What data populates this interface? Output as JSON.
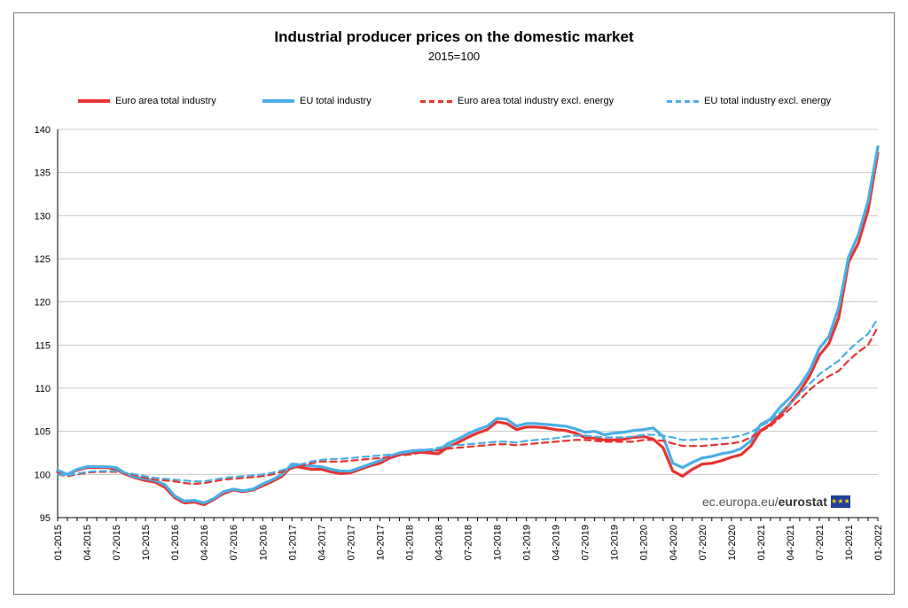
{
  "chart_data": {
    "type": "line",
    "title": "Industrial producer prices on the domestic market",
    "subtitle": "2015=100",
    "ylim": [
      95,
      140
    ],
    "yticks": [
      95,
      100,
      105,
      110,
      115,
      120,
      125,
      130,
      135,
      140
    ],
    "grid": true,
    "legend_position": "top",
    "x_tick_labels": [
      "01-2015",
      "04-2015",
      "07-2015",
      "10-2015",
      "01-2016",
      "04-2016",
      "07-2016",
      "10-2016",
      "01-2017",
      "04-2017",
      "07-2017",
      "10-2017",
      "01-2018",
      "04-2018",
      "07-2018",
      "10-2018",
      "01-2019",
      "04-2019",
      "07-2019",
      "10-2019",
      "01-2020",
      "04-2020",
      "07-2020",
      "10-2020",
      "01-2021",
      "04-2021",
      "07-2021",
      "10-2021",
      "01-2022"
    ],
    "x": [
      "01-2015",
      "02-2015",
      "03-2015",
      "04-2015",
      "05-2015",
      "06-2015",
      "07-2015",
      "08-2015",
      "09-2015",
      "10-2015",
      "11-2015",
      "12-2015",
      "01-2016",
      "02-2016",
      "03-2016",
      "04-2016",
      "05-2016",
      "06-2016",
      "07-2016",
      "08-2016",
      "09-2016",
      "10-2016",
      "11-2016",
      "12-2016",
      "01-2017",
      "02-2017",
      "03-2017",
      "04-2017",
      "05-2017",
      "06-2017",
      "07-2017",
      "08-2017",
      "09-2017",
      "10-2017",
      "11-2017",
      "12-2017",
      "01-2018",
      "02-2018",
      "03-2018",
      "04-2018",
      "05-2018",
      "06-2018",
      "07-2018",
      "08-2018",
      "09-2018",
      "10-2018",
      "11-2018",
      "12-2018",
      "01-2019",
      "02-2019",
      "03-2019",
      "04-2019",
      "05-2019",
      "06-2019",
      "07-2019",
      "08-2019",
      "09-2019",
      "10-2019",
      "11-2019",
      "12-2019",
      "01-2020",
      "02-2020",
      "03-2020",
      "04-2020",
      "05-2020",
      "06-2020",
      "07-2020",
      "08-2020",
      "09-2020",
      "10-2020",
      "11-2020",
      "12-2020",
      "01-2021",
      "02-2021",
      "03-2021",
      "04-2021",
      "05-2021",
      "06-2021",
      "07-2021",
      "08-2021",
      "09-2021",
      "10-2021",
      "11-2021",
      "12-2021",
      "01-2022"
    ],
    "series": [
      {
        "name": "Euro area total industry",
        "color": "#e8332f",
        "dash": false,
        "values": [
          100.3,
          100.0,
          100.5,
          100.8,
          100.8,
          100.8,
          100.6,
          100.0,
          99.6,
          99.3,
          99.1,
          98.5,
          97.3,
          96.7,
          96.8,
          96.5,
          97.1,
          97.8,
          98.2,
          98.0,
          98.2,
          98.7,
          99.2,
          99.8,
          101.0,
          100.8,
          100.6,
          100.6,
          100.3,
          100.1,
          100.2,
          100.6,
          101.0,
          101.3,
          101.9,
          102.3,
          102.5,
          102.6,
          102.5,
          102.4,
          103.2,
          103.7,
          104.3,
          104.8,
          105.2,
          106.1,
          105.9,
          105.2,
          105.5,
          105.5,
          105.4,
          105.2,
          105.1,
          104.8,
          104.3,
          104.2,
          104.0,
          104.0,
          104.1,
          104.3,
          104.4,
          104.1,
          103.1,
          100.4,
          99.8,
          100.6,
          101.2,
          101.3,
          101.6,
          102.0,
          102.3,
          103.3,
          105.1,
          105.8,
          106.9,
          108.2,
          109.6,
          111.4,
          113.8,
          115.2,
          118.2,
          124.6,
          126.8,
          130.6,
          137.3
        ]
      },
      {
        "name": "EU total industry",
        "color": "#4aaee6",
        "dash": false,
        "values": [
          100.5,
          100.0,
          100.6,
          100.9,
          100.9,
          100.9,
          100.8,
          100.1,
          99.7,
          99.5,
          99.3,
          98.8,
          97.5,
          96.9,
          97.0,
          96.7,
          97.2,
          98.0,
          98.3,
          98.1,
          98.3,
          98.9,
          99.4,
          100.0,
          101.2,
          101.1,
          101.0,
          100.9,
          100.6,
          100.4,
          100.4,
          100.8,
          101.2,
          101.6,
          102.1,
          102.5,
          102.7,
          102.8,
          102.8,
          102.8,
          103.6,
          104.1,
          104.7,
          105.2,
          105.6,
          106.5,
          106.4,
          105.6,
          105.9,
          105.9,
          105.8,
          105.7,
          105.6,
          105.3,
          104.9,
          105.0,
          104.6,
          104.8,
          104.9,
          105.1,
          105.2,
          105.4,
          104.4,
          101.3,
          100.8,
          101.4,
          101.9,
          102.1,
          102.4,
          102.6,
          103.0,
          103.9,
          105.8,
          106.4,
          107.8,
          108.9,
          110.3,
          112.0,
          114.6,
          116.0,
          119.4,
          125.2,
          127.8,
          131.7,
          138.0
        ]
      },
      {
        "name": "Euro area total industry excl. energy",
        "color": "#e8332f",
        "dash": true,
        "values": [
          100.0,
          99.8,
          100.0,
          100.2,
          100.3,
          100.3,
          100.3,
          100.1,
          99.9,
          99.6,
          99.4,
          99.3,
          99.2,
          99.0,
          98.9,
          99.0,
          99.2,
          99.4,
          99.5,
          99.6,
          99.7,
          99.8,
          100.0,
          100.3,
          100.7,
          101.0,
          101.3,
          101.5,
          101.5,
          101.5,
          101.6,
          101.7,
          101.8,
          101.9,
          102.0,
          102.2,
          102.3,
          102.5,
          102.6,
          102.8,
          103.0,
          103.1,
          103.2,
          103.3,
          103.4,
          103.5,
          103.5,
          103.4,
          103.5,
          103.6,
          103.7,
          103.8,
          103.9,
          104.0,
          104.0,
          103.9,
          103.8,
          103.8,
          103.8,
          103.8,
          104.0,
          104.0,
          103.9,
          103.6,
          103.3,
          103.3,
          103.3,
          103.4,
          103.5,
          103.6,
          103.8,
          104.3,
          105.0,
          105.6,
          106.6,
          107.6,
          108.6,
          109.8,
          110.7,
          111.4,
          112.0,
          113.2,
          114.2,
          115.0,
          117.1
        ]
      },
      {
        "name": "EU total industry excl. energy",
        "color": "#4aaee6",
        "dash": true,
        "values": [
          100.0,
          99.9,
          100.1,
          100.3,
          100.4,
          100.4,
          100.4,
          100.2,
          100.0,
          99.8,
          99.6,
          99.5,
          99.4,
          99.3,
          99.2,
          99.2,
          99.4,
          99.6,
          99.7,
          99.8,
          99.9,
          100.0,
          100.2,
          100.5,
          100.9,
          101.2,
          101.5,
          101.7,
          101.8,
          101.8,
          101.9,
          102.0,
          102.1,
          102.2,
          102.3,
          102.4,
          102.6,
          102.8,
          102.9,
          103.1,
          103.3,
          103.4,
          103.5,
          103.6,
          103.7,
          103.8,
          103.8,
          103.7,
          103.9,
          104.0,
          104.1,
          104.2,
          104.4,
          104.5,
          104.5,
          104.4,
          104.3,
          104.3,
          104.3,
          104.4,
          104.6,
          104.6,
          104.5,
          104.3,
          104.0,
          104.0,
          104.1,
          104.1,
          104.2,
          104.3,
          104.5,
          104.9,
          105.6,
          106.2,
          107.2,
          108.2,
          109.3,
          110.5,
          111.6,
          112.4,
          113.2,
          114.4,
          115.4,
          116.3,
          118.1
        ]
      }
    ]
  },
  "watermark": {
    "prefix": "ec.europa.eu/",
    "brand": "eurostat"
  }
}
